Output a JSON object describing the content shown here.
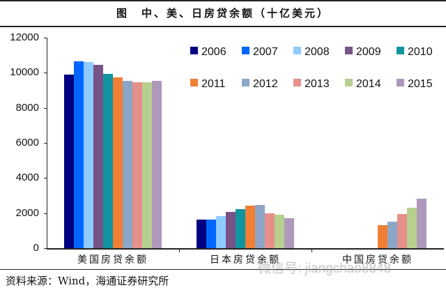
{
  "header": {
    "figure_label": "图",
    "title": "中、美、日房贷余额（十亿美元）"
  },
  "footer": {
    "source": "资料来源：Wind，海通证券研究所",
    "watermark": "微信号: jiangchao8848"
  },
  "chart_data": {
    "type": "bar",
    "title": "中、美、日房贷余额（十亿美元）",
    "xlabel": "",
    "ylabel": "",
    "ylim": [
      0,
      12000
    ],
    "yticks": [
      0,
      2000,
      4000,
      6000,
      8000,
      10000,
      12000
    ],
    "grid": false,
    "legend_position": "upper right",
    "categories": [
      "美国房贷余额",
      "日本房贷余额",
      "中国房贷余额"
    ],
    "series": [
      {
        "name": "2006",
        "color": "#000080",
        "values": [
          9900,
          1630,
          null
        ]
      },
      {
        "name": "2007",
        "color": "#0066FF",
        "values": [
          10650,
          1630,
          null
        ]
      },
      {
        "name": "2008",
        "color": "#8FCBFF",
        "values": [
          10600,
          1830,
          null
        ]
      },
      {
        "name": "2009",
        "color": "#765287",
        "values": [
          10450,
          2070,
          null
        ]
      },
      {
        "name": "2010",
        "color": "#0E95A0",
        "values": [
          9950,
          2220,
          null
        ]
      },
      {
        "name": "2011",
        "color": "#F07F35",
        "values": [
          9750,
          2420,
          1310
        ]
      },
      {
        "name": "2012",
        "color": "#8CA6C8",
        "values": [
          9550,
          2460,
          1510
        ]
      },
      {
        "name": "2013",
        "color": "#E6908A",
        "values": [
          9450,
          1990,
          1950
        ]
      },
      {
        "name": "2014",
        "color": "#B7CF8F",
        "values": [
          9450,
          1900,
          2300
        ]
      },
      {
        "name": "2015",
        "color": "#AE98BC",
        "values": [
          9550,
          1700,
          2820
        ]
      }
    ]
  }
}
